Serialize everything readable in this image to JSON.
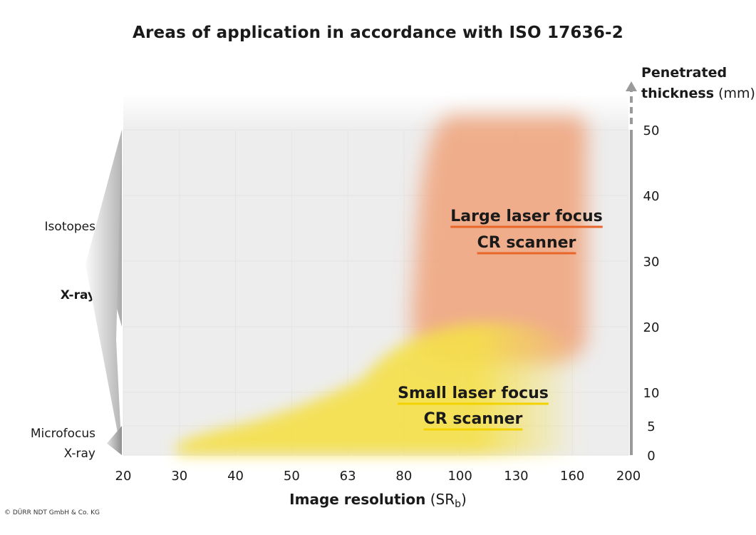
{
  "chart_data": {
    "type": "area",
    "title": "Areas of application in accordance with ISO 17636-2",
    "xlabel_main": "Image resolution",
    "xlabel_unit_base": "SR",
    "xlabel_unit_sub": "b",
    "ylabel_main_1": "Penetrated",
    "ylabel_main_2": "thickness",
    "ylabel_unit": "(mm)",
    "x_categories": [
      "20",
      "30",
      "40",
      "50",
      "63",
      "80",
      "100",
      "130",
      "160",
      "200"
    ],
    "y_ticks": [
      0,
      5,
      10,
      20,
      30,
      40,
      50
    ],
    "ylim": [
      0,
      50
    ],
    "y_axis_extends_beyond_max": true,
    "grid": true,
    "regions": [
      {
        "label_line1": "Large laser focus",
        "label_line2": "CR scanner",
        "color": "#f0a37a",
        "underline_color": "#e8662a",
        "x_range": [
          "100",
          "160"
        ],
        "y_range": [
          15,
          50
        ]
      },
      {
        "label_line1": "Small laser focus",
        "label_line2": "CR scanner",
        "color": "#f5e04a",
        "underline_color": "#f2d200",
        "x_range": [
          "30",
          "160"
        ],
        "y_range": [
          0,
          20
        ]
      }
    ],
    "radiation_sources": [
      {
        "label": "Isotopes",
        "y_range": [
          20,
          50
        ],
        "bold": false
      },
      {
        "label": "X-ray",
        "y_range": [
          0,
          50
        ],
        "bold": true
      },
      {
        "label_line1": "Microfocus",
        "label_line2": "X-ray",
        "y_range": [
          0,
          5
        ],
        "bold": false
      }
    ]
  },
  "copyright": "© DÜRR NDT GmbH & Co. KG"
}
